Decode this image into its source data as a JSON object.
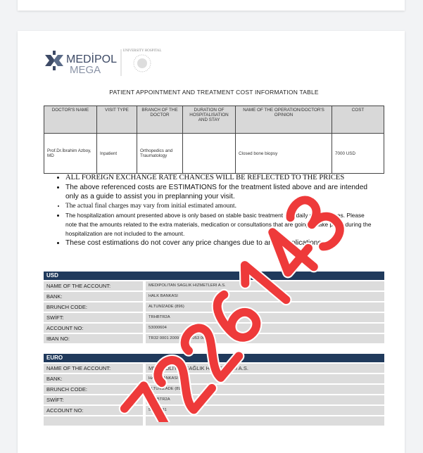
{
  "logo": {
    "brand": "MEDİPOL",
    "sub": "MEGA",
    "seal": "UNIVERSITY HOSPITAL"
  },
  "title": "PATIENT APPOINTMENT AND TREATMENT COST INFORMATION TABLE",
  "table": {
    "headers": [
      "DOCTOR'S NAME",
      "VISIT TYPE",
      "BRANCH OF THE DOCTOR",
      "DURATION OF HOSPITALISATION AND STAY",
      "NAME OF THE OPERATION/DOCTOR'S OPINION",
      "COST"
    ],
    "row": [
      "Prof.Dr.İbrahim Azboy, MD",
      "Inpatient",
      "Orthopedics and Traumatology",
      "",
      "Closed bone biopsy",
      "7000 USD"
    ]
  },
  "notes": [
    "ALL FOREIGN EXCHANGE RATE CHANCES WILL BE REFLECTED TO THE PRICES",
    "The above referenced costs are ESTIMATIONS for the treatment listed above and are intended only as a guide to assist you in preplanning your visit.",
    "The actual final charges may vary from initial estimated amount.",
    "The hospitalization amount presented above is only based on stable basic treatment and daily rooming fees. Please note that the amounts related to the extra materials, medication or consultations that are going to take place during the hospitalization are not included to the amount.",
    "These cost estimations do not cover any price changes due to any complications."
  ],
  "usd": {
    "currency": "USD",
    "rows": [
      {
        "label": "NAME OF THE ACCOUNT:",
        "value": "MEDIPOLITAN SAGLIK HIZMETLERI A.S."
      },
      {
        "label": "BANK:",
        "value": "HALK BANKASI"
      },
      {
        "label": "BRUNCH CODE:",
        "value": "ALTUNİZADE (896)"
      },
      {
        "label": "SWİFT:",
        "value": "TRHBTR2A"
      },
      {
        "label": "ACCOUNT NO:",
        "value": "53000604"
      },
      {
        "label": "IBAN NO:",
        "value": "TR32 0001 2009 8960 0053 0006 04"
      }
    ]
  },
  "euro": {
    "currency": "EURO",
    "rows": [
      {
        "label": "NAME OF THE ACCOUNT:",
        "value": "MEDİPOLİTAN SAĞLIK HİZMETLERİ A.S."
      },
      {
        "label": "BANK:",
        "value": "HALK BANKASI"
      },
      {
        "label": "BRUNCH CODE:",
        "value": "ALTUNİZADE (896)"
      },
      {
        "label": "SWİFT:",
        "value": "TRHBTR2A"
      },
      {
        "label": "ACCOUNT NO:",
        "value": "58000131"
      }
    ]
  },
  "watermark": {
    "text": "7226143",
    "color": "#ee3a3a"
  }
}
